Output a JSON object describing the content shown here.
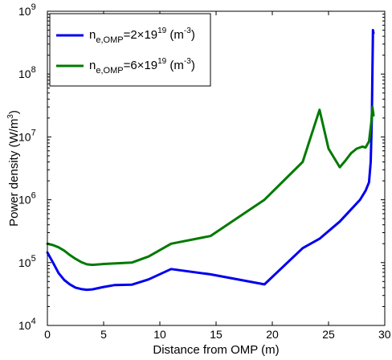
{
  "chart_data": {
    "type": "line",
    "title": "",
    "xlabel": "Distance from OMP (m)",
    "ylabel": "Power density (W/m",
    "ylabel_sup": "3",
    "ylabel_close": ")",
    "xlim": [
      0,
      30
    ],
    "ylim": [
      10000,
      1000000000
    ],
    "yscale": "log",
    "grid": false,
    "legend_position": "top-left",
    "x_ticks": [
      {
        "value": 0,
        "label": "0"
      },
      {
        "value": 5,
        "label": "5"
      },
      {
        "value": 10,
        "label": "10"
      },
      {
        "value": 15,
        "label": "15"
      },
      {
        "value": 20,
        "label": "20"
      },
      {
        "value": 25,
        "label": "25"
      },
      {
        "value": 30,
        "label": "30"
      }
    ],
    "y_ticks": [
      {
        "value": 10000,
        "base": "10",
        "exp": "4"
      },
      {
        "value": 100000,
        "base": "10",
        "exp": "5"
      },
      {
        "value": 1000000,
        "base": "10",
        "exp": "6"
      },
      {
        "value": 10000000,
        "base": "10",
        "exp": "7"
      },
      {
        "value": 100000000,
        "base": "10",
        "exp": "8"
      },
      {
        "value": 1000000000,
        "base": "10",
        "exp": "9"
      }
    ],
    "series": [
      {
        "name_main": "n",
        "name_sub": "e,OMP",
        "name_eq": "=2×19",
        "name_sup": "19",
        "name_unit": " (m",
        "name_unit_sup": "-3",
        "name_unit_close": ")",
        "color": "#0000ee",
        "x": [
          0,
          0.5,
          1.0,
          1.5,
          2.0,
          2.5,
          3.0,
          3.5,
          4.0,
          5.0,
          6.0,
          7.5,
          9.0,
          11.0,
          14.5,
          19.3,
          22.7,
          24.2,
          26.0,
          27.0,
          27.8,
          28.3,
          28.6,
          28.75,
          28.85,
          28.9,
          28.95,
          29.0
        ],
        "y": [
          145000,
          100000,
          68000,
          53000,
          45000,
          40000,
          38000,
          37000,
          37500,
          41000,
          44000,
          44500,
          54000,
          79000,
          65000,
          45000,
          170000,
          240000,
          450000,
          700000,
          1000000,
          1400000,
          1900000,
          4000000,
          20000000,
          100000000,
          500000000,
          450000000
        ]
      },
      {
        "name_main": "n",
        "name_sub": "e,OMP",
        "name_eq": "=6×19",
        "name_sup": "19",
        "name_unit": " (m",
        "name_unit_sup": "-3",
        "name_unit_close": ")",
        "color": "#007a00",
        "x": [
          0,
          0.5,
          1.0,
          1.5,
          2.0,
          2.5,
          3.0,
          3.5,
          4.0,
          5.0,
          7.5,
          9.0,
          11.0,
          14.5,
          19.3,
          22.7,
          24.2,
          25.0,
          26.0,
          26.5,
          27.0,
          27.5,
          28.0,
          28.3,
          28.6,
          28.8,
          28.9,
          29.0
        ],
        "y": [
          200000,
          190000,
          175000,
          155000,
          132000,
          115000,
          102000,
          94000,
          92000,
          95000,
          100000,
          125000,
          200000,
          265000,
          1000000,
          4000000,
          27000000,
          6500000,
          3300000,
          4200000,
          5500000,
          6500000,
          7000000,
          6800000,
          8500000,
          17000000,
          30000000,
          22000000
        ]
      }
    ]
  }
}
